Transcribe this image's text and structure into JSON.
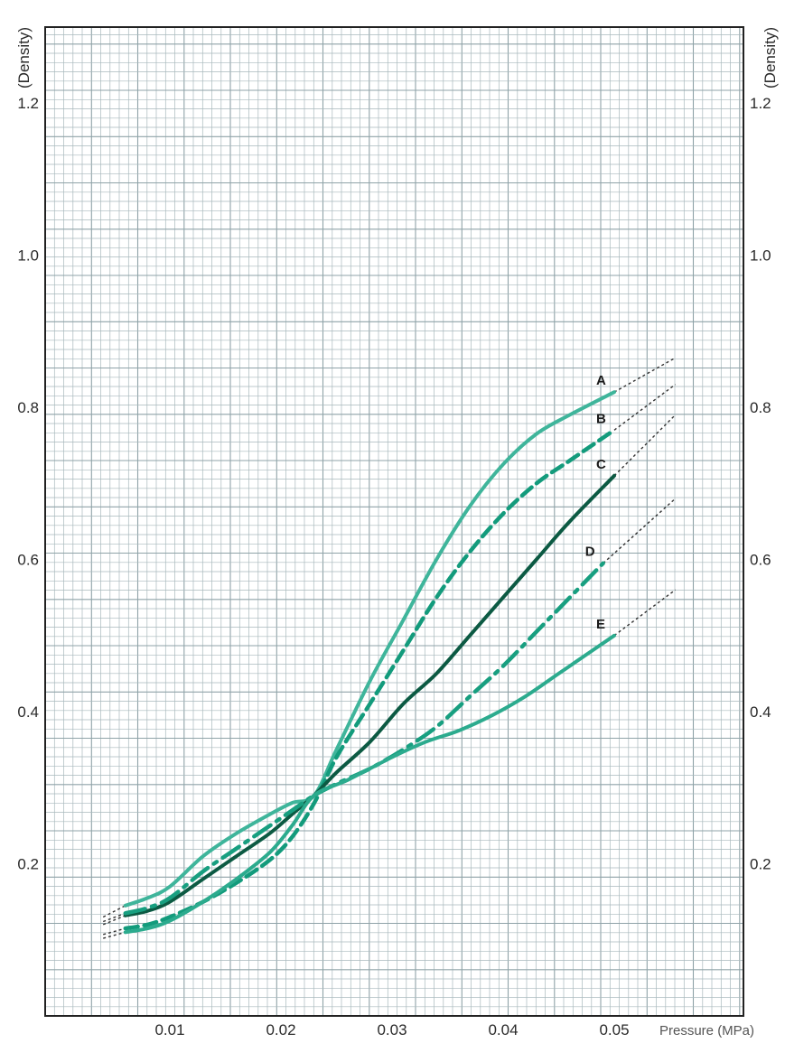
{
  "chart_data": {
    "type": "line",
    "title": "",
    "xlabel": "Pressure (MPa)",
    "ylabel": "(Density)",
    "ylabel_right": "(Density)",
    "xlim": [
      0,
      0.065
    ],
    "ylim": [
      0,
      1.3
    ],
    "x_ticks": [
      0.01,
      0.02,
      0.03,
      0.04,
      0.05
    ],
    "x_tick_labels": [
      "0.01",
      "0.02",
      "0.03",
      "0.04",
      "0.05"
    ],
    "y_ticks": [
      0.2,
      0.4,
      0.6,
      0.8,
      1.0,
      1.2
    ],
    "y_tick_labels": [
      "0.2",
      "0.4",
      "0.6",
      "0.8",
      "1.0",
      "1.2"
    ],
    "grid": true,
    "legend": "inline-labels-right",
    "series": [
      {
        "name": "A",
        "style": "solid",
        "color": "#3fb59b",
        "width": 4,
        "x": [
          0.006,
          0.008,
          0.01,
          0.013,
          0.016,
          0.019,
          0.021,
          0.023,
          0.025,
          0.028,
          0.031,
          0.034,
          0.037,
          0.04,
          0.043,
          0.046,
          0.05
        ],
        "y": [
          0.145,
          0.155,
          0.17,
          0.21,
          0.24,
          0.265,
          0.28,
          0.29,
          0.35,
          0.44,
          0.52,
          0.6,
          0.67,
          0.725,
          0.765,
          0.79,
          0.82
        ],
        "extension": {
          "x": [
            0.05,
            0.0555
          ],
          "y": [
            0.82,
            0.865
          ]
        }
      },
      {
        "name": "B",
        "style": "dashed",
        "color": "#139b7c",
        "width": 4.5,
        "x": [
          0.006,
          0.008,
          0.01,
          0.013,
          0.016,
          0.019,
          0.021,
          0.023,
          0.025,
          0.028,
          0.031,
          0.034,
          0.037,
          0.04,
          0.043,
          0.046,
          0.05
        ],
        "y": [
          0.115,
          0.12,
          0.13,
          0.15,
          0.175,
          0.205,
          0.235,
          0.28,
          0.34,
          0.41,
          0.48,
          0.55,
          0.61,
          0.66,
          0.7,
          0.73,
          0.77
        ],
        "extension": {
          "x": [
            0.05,
            0.0555
          ],
          "y": [
            0.77,
            0.83
          ]
        }
      },
      {
        "name": "C",
        "style": "solid",
        "color": "#0c5a43",
        "width": 4,
        "x": [
          0.006,
          0.008,
          0.01,
          0.013,
          0.016,
          0.019,
          0.021,
          0.023,
          0.025,
          0.028,
          0.031,
          0.034,
          0.037,
          0.04,
          0.043,
          0.046,
          0.05
        ],
        "y": [
          0.132,
          0.138,
          0.15,
          0.18,
          0.21,
          0.24,
          0.265,
          0.29,
          0.32,
          0.36,
          0.41,
          0.45,
          0.5,
          0.55,
          0.6,
          0.65,
          0.71
        ],
        "extension": {
          "x": [
            0.05,
            0.0555
          ],
          "y": [
            0.71,
            0.79
          ]
        }
      },
      {
        "name": "D",
        "style": "dashdot",
        "color": "#189f80",
        "width": 4.5,
        "x": [
          0.006,
          0.008,
          0.01,
          0.013,
          0.016,
          0.019,
          0.021,
          0.023,
          0.025,
          0.028,
          0.031,
          0.034,
          0.037,
          0.04,
          0.043,
          0.046,
          0.049
        ],
        "y": [
          0.135,
          0.142,
          0.155,
          0.19,
          0.22,
          0.25,
          0.27,
          0.29,
          0.305,
          0.325,
          0.35,
          0.38,
          0.42,
          0.46,
          0.505,
          0.55,
          0.595
        ],
        "extension": {
          "x": [
            0.049,
            0.0555
          ],
          "y": [
            0.595,
            0.68
          ]
        }
      },
      {
        "name": "E",
        "style": "dotted",
        "color": "#2cab8e",
        "width": 4,
        "x": [
          0.006,
          0.008,
          0.01,
          0.013,
          0.016,
          0.019,
          0.021,
          0.023,
          0.026,
          0.03,
          0.033,
          0.036,
          0.039,
          0.042,
          0.045,
          0.048,
          0.05
        ],
        "y": [
          0.11,
          0.115,
          0.125,
          0.15,
          0.18,
          0.215,
          0.25,
          0.29,
          0.31,
          0.34,
          0.36,
          0.375,
          0.395,
          0.42,
          0.45,
          0.48,
          0.5
        ],
        "extension": {
          "x": [
            0.05,
            0.0555
          ],
          "y": [
            0.5,
            0.56
          ]
        }
      }
    ],
    "low_end_extensions": [
      {
        "series": "A",
        "x": [
          0.004,
          0.006
        ],
        "y": [
          0.13,
          0.145
        ]
      },
      {
        "series": "B",
        "x": [
          0.004,
          0.006
        ],
        "y": [
          0.107,
          0.115
        ]
      },
      {
        "series": "C",
        "x": [
          0.004,
          0.006
        ],
        "y": [
          0.12,
          0.132
        ]
      },
      {
        "series": "D",
        "x": [
          0.004,
          0.006
        ],
        "y": [
          0.124,
          0.135
        ]
      },
      {
        "series": "E",
        "x": [
          0.004,
          0.006
        ],
        "y": [
          0.102,
          0.11
        ]
      }
    ]
  },
  "colors": {
    "grid": "#a9b9bd",
    "grid_major": "#8fa3a8",
    "frame": "#222222",
    "extension": "#333333"
  }
}
